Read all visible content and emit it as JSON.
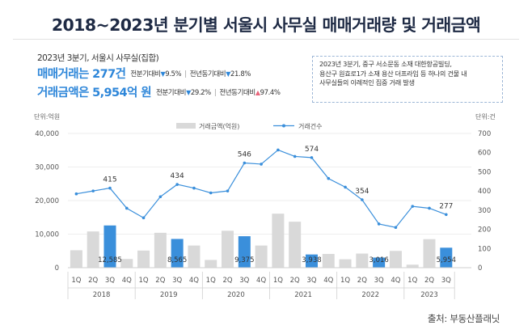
{
  "title": "2018~2023년 분기별 서울시 사무실 매매거래량 및 거래금액",
  "summary": {
    "subtitle": "2023년 3분기, 서울시 사무실(집합)",
    "volume_headline": "매매거래는 277건",
    "volume_qoq_label": "전분기대비",
    "volume_qoq_value": "9.5%",
    "volume_yoy_label": "전년동기대비",
    "volume_yoy_value": "21.8%",
    "amount_headline": "거래금액은 5,954억 원",
    "amount_qoq_label": "전분기대비",
    "amount_qoq_value": "29.2%",
    "amount_yoy_label": "전년동기대비",
    "amount_yoy_value": "97.4%"
  },
  "note_lines": [
    "2023년 3분기, 중구 서소문동 소재 대한항공빌딩,",
    "용산구 원효로1가 소재 용산 더프라임 등 하나의 건물 내",
    "사무실들의 이례적인 집중 거래 발생"
  ],
  "source": "출처: 부동산플래닛",
  "chart_data": {
    "type": "bar",
    "y_left_unit": "단위:억원",
    "y_right_unit": "단위:건",
    "ylim_left": [
      0,
      40000
    ],
    "ylim_right": [
      0,
      700
    ],
    "y_left_ticks": [
      "0",
      "10,000",
      "20,000",
      "30,000",
      "40,000"
    ],
    "y_right_ticks": [
      "0",
      "100",
      "200",
      "300",
      "400",
      "500",
      "600",
      "700"
    ],
    "legend": [
      "거래금액(억원)",
      "거래건수"
    ],
    "legend_position": "top-center",
    "grid": true,
    "years": [
      "2018",
      "2019",
      "2020",
      "2021",
      "2022",
      "2023"
    ],
    "quarter_labels": [
      "1Q",
      "2Q",
      "3Q",
      "4Q"
    ],
    "categories": [
      "2018 1Q",
      "2018 2Q",
      "2018 3Q",
      "2018 4Q",
      "2019 1Q",
      "2019 2Q",
      "2019 3Q",
      "2019 4Q",
      "2020 1Q",
      "2020 2Q",
      "2020 3Q",
      "2020 4Q",
      "2021 1Q",
      "2021 2Q",
      "2021 3Q",
      "2021 4Q",
      "2022 1Q",
      "2022 2Q",
      "2022 3Q",
      "2022 4Q",
      "2023 1Q",
      "2023 2Q",
      "2023 3Q"
    ],
    "series": [
      {
        "name": "거래금액(억원)",
        "kind": "bar",
        "color": "#d9d9d9",
        "highlight_color": "#3a8fdb",
        "values": [
          5200,
          10800,
          12585,
          2600,
          5100,
          10400,
          8565,
          6600,
          2300,
          11000,
          9375,
          6600,
          16100,
          13700,
          3938,
          4100,
          2500,
          4200,
          3016,
          5000,
          900,
          8500,
          5954
        ],
        "highlight_indices": [
          2,
          6,
          10,
          14,
          18,
          22
        ]
      },
      {
        "name": "거래건수",
        "kind": "line",
        "color": "#3a8fdb",
        "values": [
          385,
          400,
          415,
          310,
          260,
          370,
          434,
          415,
          390,
          400,
          546,
          540,
          614,
          580,
          574,
          465,
          420,
          354,
          228,
          210,
          320,
          310,
          277
        ]
      }
    ],
    "line_labels": [
      {
        "index": 2,
        "text": "415"
      },
      {
        "index": 6,
        "text": "434"
      },
      {
        "index": 10,
        "text": "546"
      },
      {
        "index": 14,
        "text": "574"
      },
      {
        "index": 17,
        "text": "354"
      },
      {
        "index": 22,
        "text": "277"
      }
    ],
    "bar_labels": [
      {
        "index": 2,
        "text": "12,585"
      },
      {
        "index": 6,
        "text": "8,565"
      },
      {
        "index": 10,
        "text": "9,375"
      },
      {
        "index": 14,
        "text": "3,938"
      },
      {
        "index": 18,
        "text": "3,016"
      },
      {
        "index": 22,
        "text": "5,954"
      }
    ]
  }
}
